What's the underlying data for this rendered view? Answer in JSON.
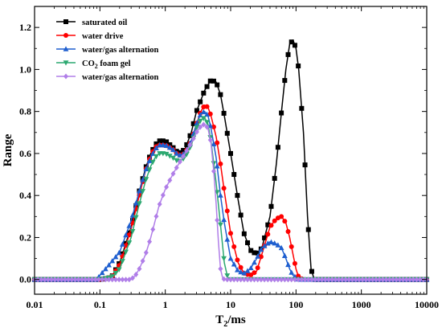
{
  "chart_data": {
    "type": "line",
    "x_scale": "log",
    "xlabel": "T",
    "xlabel_sub": "2",
    "xlabel_unit": "/ms",
    "ylabel": "Range",
    "xlim": [
      0.01,
      10000
    ],
    "ylim": [
      -0.07,
      1.3
    ],
    "x_ticks": [
      0.01,
      0.1,
      1,
      10,
      100,
      1000,
      10000
    ],
    "x_tick_labels": [
      "0.01",
      "0.1",
      "1",
      "10",
      "100",
      "1000",
      "10000"
    ],
    "y_ticks": [
      0.0,
      0.2,
      0.4,
      0.6,
      0.8,
      1.0,
      1.2
    ],
    "y_tick_labels": [
      "0.0",
      "0.2",
      "0.4",
      "0.6",
      "0.8",
      "1.0",
      "1.2"
    ],
    "grid": false,
    "legend_position": "top-left",
    "series": [
      {
        "name": "saturated oil",
        "color": "#000000",
        "marker": "square",
        "points": [
          [
            0.01,
            0
          ],
          [
            0.05,
            0
          ],
          [
            0.1,
            0
          ],
          [
            0.15,
            0.01
          ],
          [
            0.2,
            0.08
          ],
          [
            0.3,
            0.25
          ],
          [
            0.4,
            0.42
          ],
          [
            0.5,
            0.53
          ],
          [
            0.6,
            0.6
          ],
          [
            0.7,
            0.64
          ],
          [
            0.8,
            0.66
          ],
          [
            1.0,
            0.66
          ],
          [
            1.3,
            0.63
          ],
          [
            1.6,
            0.6
          ],
          [
            2.0,
            0.62
          ],
          [
            2.5,
            0.7
          ],
          [
            3.0,
            0.8
          ],
          [
            4.0,
            0.9
          ],
          [
            5.0,
            0.95
          ],
          [
            6.0,
            0.94
          ],
          [
            7.0,
            0.88
          ],
          [
            8.0,
            0.78
          ],
          [
            10,
            0.6
          ],
          [
            13,
            0.38
          ],
          [
            16,
            0.22
          ],
          [
            20,
            0.14
          ],
          [
            25,
            0.12
          ],
          [
            30,
            0.15
          ],
          [
            40,
            0.3
          ],
          [
            50,
            0.55
          ],
          [
            60,
            0.8
          ],
          [
            70,
            1.0
          ],
          [
            80,
            1.12
          ],
          [
            90,
            1.14
          ],
          [
            100,
            1.1
          ],
          [
            110,
            1.0
          ],
          [
            130,
            0.7
          ],
          [
            150,
            0.3
          ],
          [
            170,
            0.05
          ],
          [
            190,
            0
          ],
          [
            300,
            0
          ],
          [
            1000,
            0
          ],
          [
            10000,
            0
          ]
        ]
      },
      {
        "name": "water drive",
        "color": "#ff0000",
        "marker": "circle",
        "points": [
          [
            0.01,
            0
          ],
          [
            0.05,
            0
          ],
          [
            0.1,
            0
          ],
          [
            0.15,
            0.01
          ],
          [
            0.2,
            0.07
          ],
          [
            0.3,
            0.24
          ],
          [
            0.4,
            0.4
          ],
          [
            0.5,
            0.52
          ],
          [
            0.6,
            0.59
          ],
          [
            0.7,
            0.63
          ],
          [
            0.8,
            0.64
          ],
          [
            1.0,
            0.64
          ],
          [
            1.3,
            0.62
          ],
          [
            1.6,
            0.59
          ],
          [
            2.0,
            0.6
          ],
          [
            2.5,
            0.66
          ],
          [
            3.0,
            0.74
          ],
          [
            3.5,
            0.8
          ],
          [
            4.0,
            0.83
          ],
          [
            4.5,
            0.82
          ],
          [
            5.0,
            0.78
          ],
          [
            6.0,
            0.68
          ],
          [
            7.0,
            0.55
          ],
          [
            8.0,
            0.42
          ],
          [
            10,
            0.22
          ],
          [
            13,
            0.08
          ],
          [
            16,
            0.03
          ],
          [
            20,
            0.02
          ],
          [
            25,
            0.04
          ],
          [
            30,
            0.12
          ],
          [
            40,
            0.25
          ],
          [
            50,
            0.29
          ],
          [
            60,
            0.3
          ],
          [
            70,
            0.27
          ],
          [
            80,
            0.2
          ],
          [
            90,
            0.12
          ],
          [
            100,
            0.05
          ],
          [
            110,
            0.01
          ],
          [
            130,
            0
          ],
          [
            300,
            0
          ],
          [
            1000,
            0
          ],
          [
            10000,
            0
          ]
        ]
      },
      {
        "name": "water/gas alternation",
        "color": "#1f5fcf",
        "marker": "triangle-up",
        "points": [
          [
            0.01,
            0
          ],
          [
            0.05,
            0
          ],
          [
            0.09,
            0
          ],
          [
            0.1,
            0.02
          ],
          [
            0.13,
            0.06
          ],
          [
            0.2,
            0.13
          ],
          [
            0.3,
            0.28
          ],
          [
            0.4,
            0.42
          ],
          [
            0.5,
            0.52
          ],
          [
            0.6,
            0.58
          ],
          [
            0.7,
            0.62
          ],
          [
            0.8,
            0.64
          ],
          [
            1.0,
            0.64
          ],
          [
            1.3,
            0.62
          ],
          [
            1.6,
            0.59
          ],
          [
            2.0,
            0.6
          ],
          [
            2.5,
            0.66
          ],
          [
            3.0,
            0.74
          ],
          [
            3.5,
            0.79
          ],
          [
            4.0,
            0.8
          ],
          [
            4.5,
            0.78
          ],
          [
            5.0,
            0.72
          ],
          [
            6.0,
            0.58
          ],
          [
            7.0,
            0.4
          ],
          [
            8.0,
            0.27
          ],
          [
            10,
            0.1
          ],
          [
            13,
            0.04
          ],
          [
            16,
            0.03
          ],
          [
            20,
            0.05
          ],
          [
            25,
            0.1
          ],
          [
            30,
            0.15
          ],
          [
            40,
            0.18
          ],
          [
            50,
            0.17
          ],
          [
            60,
            0.15
          ],
          [
            70,
            0.1
          ],
          [
            80,
            0.05
          ],
          [
            90,
            0.02
          ],
          [
            110,
            0
          ],
          [
            300,
            0
          ],
          [
            1000,
            0
          ],
          [
            10000,
            0
          ]
        ]
      },
      {
        "name": "CO₂ foam gel",
        "color": "#2ca870",
        "marker": "triangle-down",
        "points": [
          [
            0.01,
            0
          ],
          [
            0.05,
            0
          ],
          [
            0.1,
            0
          ],
          [
            0.15,
            0.01
          ],
          [
            0.2,
            0.05
          ],
          [
            0.3,
            0.2
          ],
          [
            0.4,
            0.36
          ],
          [
            0.5,
            0.47
          ],
          [
            0.6,
            0.54
          ],
          [
            0.7,
            0.58
          ],
          [
            0.8,
            0.6
          ],
          [
            1.0,
            0.6
          ],
          [
            1.3,
            0.58
          ],
          [
            1.6,
            0.56
          ],
          [
            2.0,
            0.58
          ],
          [
            2.5,
            0.64
          ],
          [
            3.0,
            0.72
          ],
          [
            3.5,
            0.76
          ],
          [
            4.0,
            0.77
          ],
          [
            4.5,
            0.74
          ],
          [
            5.0,
            0.66
          ],
          [
            6.0,
            0.46
          ],
          [
            7.0,
            0.26
          ],
          [
            8.0,
            0.08
          ],
          [
            9.0,
            0.01
          ],
          [
            10,
            0
          ],
          [
            100,
            0
          ],
          [
            1000,
            0
          ],
          [
            10000,
            0
          ]
        ]
      },
      {
        "name": "water/gas alternation",
        "color": "#b07ee8",
        "marker": "diamond",
        "points": [
          [
            0.01,
            0
          ],
          [
            0.1,
            0
          ],
          [
            0.3,
            0
          ],
          [
            0.35,
            0.02
          ],
          [
            0.4,
            0.05
          ],
          [
            0.5,
            0.12
          ],
          [
            0.6,
            0.2
          ],
          [
            0.7,
            0.28
          ],
          [
            0.8,
            0.35
          ],
          [
            1.0,
            0.43
          ],
          [
            1.3,
            0.5
          ],
          [
            1.6,
            0.55
          ],
          [
            2.0,
            0.6
          ],
          [
            2.5,
            0.65
          ],
          [
            3.0,
            0.7
          ],
          [
            3.5,
            0.73
          ],
          [
            4.0,
            0.74
          ],
          [
            4.5,
            0.72
          ],
          [
            5.0,
            0.65
          ],
          [
            5.5,
            0.52
          ],
          [
            6.0,
            0.36
          ],
          [
            6.5,
            0.18
          ],
          [
            7.0,
            0.05
          ],
          [
            7.5,
            0.01
          ],
          [
            8.0,
            0
          ],
          [
            100,
            0
          ],
          [
            1000,
            0
          ],
          [
            10000,
            0
          ]
        ]
      }
    ]
  }
}
